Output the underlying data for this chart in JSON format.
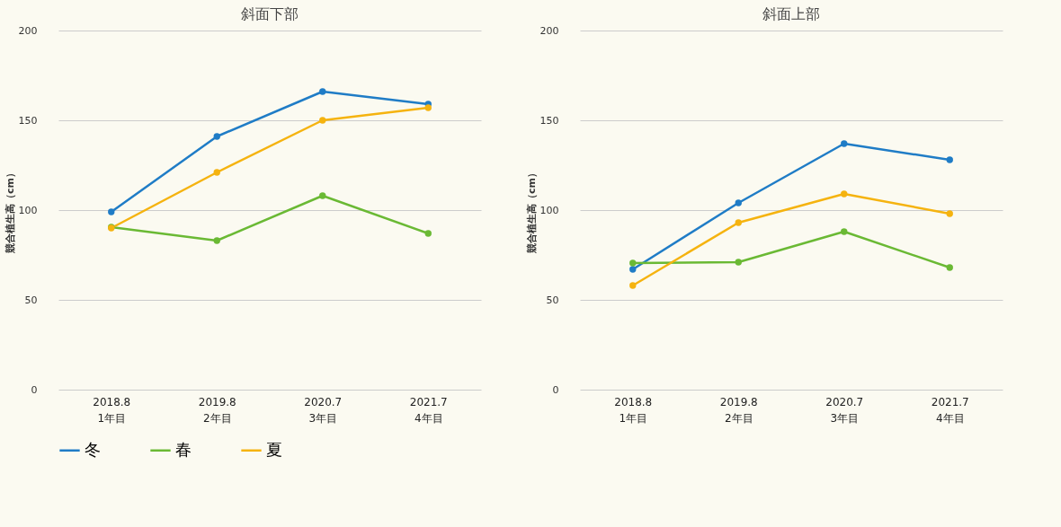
{
  "chart_data": [
    {
      "type": "line",
      "title": "斜面下部",
      "ylabel": "競合植生高（cm）",
      "categories": [
        "2018.8\n1年目",
        "2019.8\n2年目",
        "2020.7\n3年目",
        "2021.7\n4年目"
      ],
      "ylim": [
        0,
        200
      ],
      "yticks": [
        0,
        50,
        100,
        150,
        200
      ],
      "grid": "y",
      "legend": "bottom",
      "marker": "circle",
      "series": [
        {
          "name": "冬",
          "color": "#1f7cc6",
          "values": [
            99,
            141,
            166,
            159
          ]
        },
        {
          "name": "春",
          "color": "#6ab934",
          "values": [
            90.5,
            83,
            108,
            87
          ]
        },
        {
          "name": "夏",
          "color": "#f5b30f",
          "values": [
            90,
            121,
            150,
            157
          ]
        }
      ]
    },
    {
      "type": "line",
      "title": "斜面上部",
      "ylabel": "競合植生高（cm）",
      "categories": [
        "2018.8\n1年目",
        "2019.8\n2年目",
        "2020.7\n3年目",
        "2021.7\n4年目"
      ],
      "ylim": [
        0,
        200
      ],
      "yticks": [
        0,
        50,
        100,
        150,
        200
      ],
      "grid": "y",
      "legend": "bottom",
      "marker": "circle",
      "series": [
        {
          "name": "冬",
          "color": "#1f7cc6",
          "values": [
            67,
            104,
            137,
            128
          ]
        },
        {
          "name": "春",
          "color": "#6ab934",
          "values": [
            70.5,
            71,
            88,
            68
          ]
        },
        {
          "name": "夏",
          "color": "#f5b30f",
          "values": [
            58,
            93,
            109,
            98
          ]
        }
      ]
    }
  ]
}
